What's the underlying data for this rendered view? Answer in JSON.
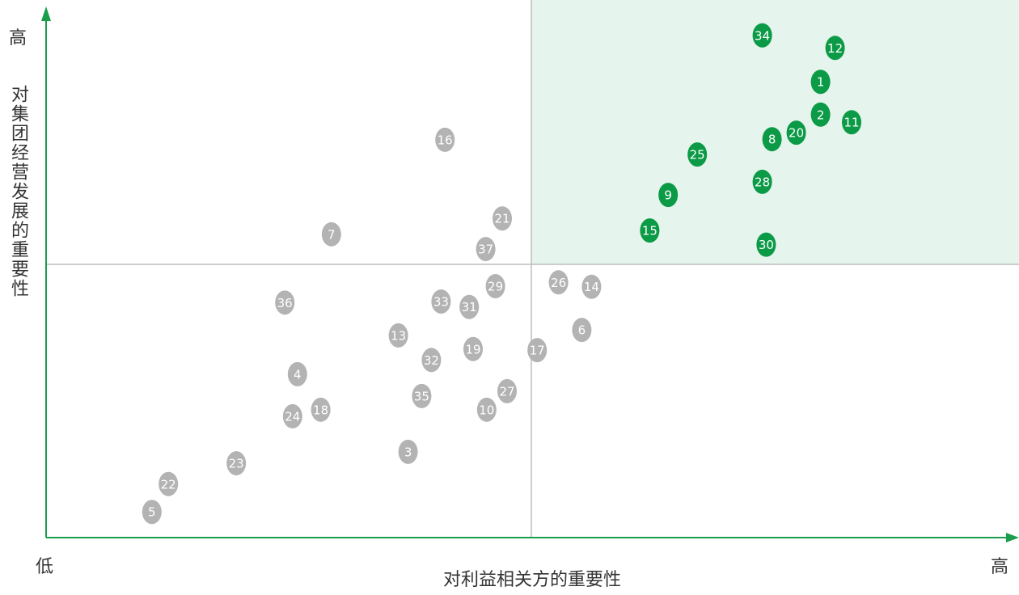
{
  "chart_data": {
    "type": "scatter",
    "x_label": "对利益相关方的重要性",
    "y_label": "对集团经营发展的重要性",
    "x_low_label": "低",
    "x_high_label": "高",
    "y_high_label": "高",
    "xlim": [
      0,
      100
    ],
    "ylim": [
      0,
      100
    ],
    "color": "#b3b3b3",
    "highlight_color": "#0b9a46",
    "highlight_fill": "#e5f4ec",
    "axis_color": "#1a9e4d",
    "labels": [
      "34",
      "12",
      "1",
      "2",
      "11",
      "20",
      "8",
      "25",
      "28",
      "9",
      "15",
      "30",
      "16",
      "21",
      "7",
      "37",
      "26",
      "14",
      "29",
      "36",
      "33",
      "31",
      "6",
      "13",
      "19",
      "17",
      "32",
      "4",
      "27",
      "35",
      "18",
      "24",
      "10",
      "3",
      "23",
      "22",
      "5"
    ],
    "x": [
      73.8,
      81.3,
      79.8,
      79.8,
      83.0,
      77.3,
      74.8,
      67.1,
      73.8,
      64.1,
      62.2,
      74.2,
      41.1,
      47.0,
      29.4,
      45.3,
      52.8,
      56.2,
      46.3,
      24.6,
      40.7,
      43.6,
      55.2,
      36.3,
      44.0,
      50.6,
      39.7,
      25.9,
      47.5,
      38.7,
      28.3,
      25.4,
      45.4,
      37.3,
      19.6,
      12.6,
      10.9
    ],
    "y": [
      91.9,
      89.6,
      83.4,
      77.4,
      76.0,
      74.1,
      72.9,
      70.1,
      65.1,
      62.7,
      56.2,
      53.6,
      72.8,
      58.4,
      55.5,
      52.8,
      46.7,
      45.9,
      46.0,
      43.0,
      43.2,
      42.2,
      38.0,
      37.0,
      34.5,
      34.3,
      32.5,
      29.9,
      26.8,
      25.9,
      23.4,
      22.2,
      23.4,
      15.7,
      13.6,
      9.8,
      4.7
    ]
  }
}
